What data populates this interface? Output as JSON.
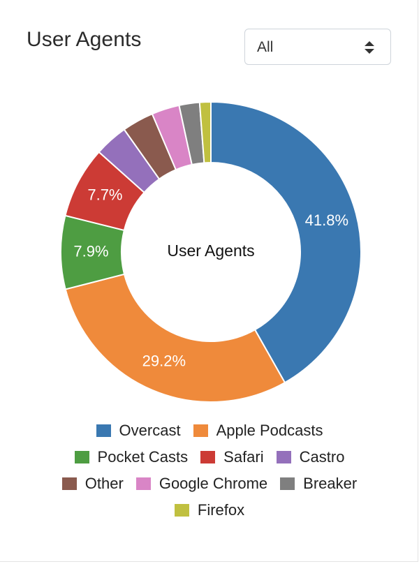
{
  "header": {
    "title": "User Agents",
    "filter": {
      "selected": "All"
    }
  },
  "chart_data": {
    "type": "pie",
    "title": "User Agents",
    "center_label": "User Agents",
    "series": [
      {
        "name": "Overcast",
        "value": 41.8,
        "label": "41.8%",
        "color": "#3a78b1"
      },
      {
        "name": "Apple Podcasts",
        "value": 29.2,
        "label": "29.2%",
        "color": "#ef8a3b"
      },
      {
        "name": "Pocket Casts",
        "value": 7.9,
        "label": "7.9%",
        "color": "#4e9d42"
      },
      {
        "name": "Safari",
        "value": 7.7,
        "label": "7.7%",
        "color": "#cc3b35"
      },
      {
        "name": "Castro",
        "value": 3.6,
        "label": "",
        "color": "#9470bb"
      },
      {
        "name": "Other",
        "value": 3.4,
        "label": "",
        "color": "#8a5a4e"
      },
      {
        "name": "Google Chrome",
        "value": 3.0,
        "label": "",
        "color": "#d985c6"
      },
      {
        "name": "Breaker",
        "value": 2.2,
        "label": "",
        "color": "#7f7f7f"
      },
      {
        "name": "Firefox",
        "value": 1.2,
        "label": "",
        "color": "#c0c040"
      }
    ]
  },
  "legend": {
    "rows": [
      [
        {
          "label": "Overcast",
          "color": "#3a78b1"
        },
        {
          "label": "Apple Podcasts",
          "color": "#ef8a3b"
        }
      ],
      [
        {
          "label": "Pocket Casts",
          "color": "#4e9d42"
        },
        {
          "label": "Safari",
          "color": "#cc3b35"
        },
        {
          "label": "Castro",
          "color": "#9470bb"
        }
      ],
      [
        {
          "label": "Other",
          "color": "#8a5a4e"
        },
        {
          "label": "Google Chrome",
          "color": "#d985c6"
        },
        {
          "label": "Breaker",
          "color": "#7f7f7f"
        }
      ],
      [
        {
          "label": "Firefox",
          "color": "#c0c040"
        }
      ]
    ]
  }
}
